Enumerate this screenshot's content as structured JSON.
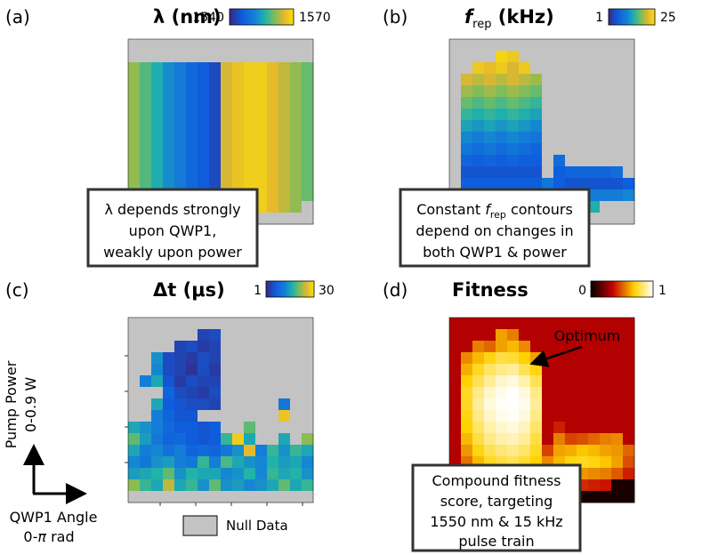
{
  "chart_data": [
    {
      "type": "heatmap",
      "panel_label": "(a)",
      "title": "λ (nm)",
      "colormap": "parula",
      "colorbar": {
        "min_label": "1540",
        "max_label": "1570",
        "vmin": 1540,
        "vmax": 1570
      },
      "x": "QWP1 angle 0 to π rad (16 columns)",
      "y": "pump power 0 to 0.9 W (16 rows, top = high)",
      "grid_rows_top_to_bottom": [
        [
          null,
          null,
          null,
          null,
          null,
          null,
          null,
          null,
          null,
          null,
          null,
          null,
          null,
          null,
          null,
          null
        ],
        [
          null,
          null,
          null,
          null,
          null,
          null,
          null,
          null,
          null,
          null,
          null,
          null,
          null,
          null,
          null,
          null
        ],
        [
          1562,
          1559,
          1556,
          1553,
          1551,
          1548,
          1546,
          1544,
          1565,
          1567,
          1568,
          1568,
          1566,
          1564,
          1562,
          1560
        ],
        [
          1562,
          1559,
          1556,
          1553,
          1551,
          1548,
          1546,
          1544,
          1565,
          1567,
          1568,
          1568,
          1566,
          1564,
          1562,
          1560
        ],
        [
          1562,
          1559,
          1556,
          1553,
          1551,
          1548,
          1546,
          1544,
          1565,
          1567,
          1568,
          1568,
          1566,
          1564,
          1562,
          1560
        ],
        [
          1562,
          1559,
          1556,
          1553,
          1551,
          1548,
          1546,
          1544,
          1565,
          1567,
          1568,
          1568,
          1566,
          1564,
          1562,
          1560
        ],
        [
          1562,
          1559,
          1556,
          1553,
          1551,
          1548,
          1546,
          1544,
          1565,
          1567,
          1568,
          1568,
          1566,
          1564,
          1562,
          1560
        ],
        [
          1562,
          1559,
          1556,
          1553,
          1551,
          1548,
          1546,
          1544,
          1565,
          1567,
          1568,
          1568,
          1566,
          1564,
          1562,
          1560
        ],
        [
          1562,
          1559,
          1556,
          1553,
          1551,
          1548,
          1546,
          1544,
          1565,
          1567,
          1568,
          1568,
          1566,
          1564,
          1562,
          1560
        ],
        [
          1562,
          1559,
          1556,
          1553,
          1551,
          1548,
          1546,
          1544,
          1565,
          1567,
          1568,
          1568,
          1566,
          1564,
          1562,
          1560
        ],
        [
          1562,
          1559,
          1556,
          1553,
          1551,
          1548,
          1546,
          1544,
          1565,
          1567,
          1568,
          1568,
          1566,
          1564,
          1562,
          1560
        ],
        [
          1562,
          1559,
          1556,
          1553,
          1551,
          1548,
          1546,
          1544,
          1565,
          1567,
          1568,
          1568,
          1566,
          1564,
          1562,
          1560
        ],
        [
          1562,
          1559,
          1556,
          1553,
          1551,
          1548,
          1546,
          1544,
          1565,
          1567,
          1568,
          1568,
          1566,
          1564,
          1562,
          1560
        ],
        [
          null,
          1559,
          1556,
          1553,
          1551,
          1548,
          1546,
          1544,
          1565,
          1567,
          1568,
          1568,
          1566,
          1564,
          1562,
          1560
        ],
        [
          1562,
          1559,
          1556,
          1553,
          1551,
          1548,
          1546,
          1544,
          1565,
          1567,
          1568,
          1568,
          1566,
          1564,
          1562,
          null
        ],
        [
          null,
          null,
          null,
          null,
          null,
          null,
          null,
          null,
          null,
          null,
          null,
          null,
          null,
          null,
          null,
          null
        ]
      ],
      "annotation": [
        "λ depends strongly",
        "upon QWP1,",
        "weakly upon power"
      ]
    },
    {
      "type": "heatmap",
      "panel_label": "(b)",
      "title": "f_rep (kHz)",
      "colormap": "parula",
      "colorbar": {
        "min_label": "1",
        "max_label": "25",
        "vmin": 1,
        "vmax": 25
      },
      "x": "QWP1 angle 0 to π rad (16 columns)",
      "y": "pump power 0 to 0.9 W (16 rows, top = high)",
      "grid_rows_top_to_bottom": [
        [
          null,
          null,
          null,
          null,
          null,
          null,
          null,
          null,
          null,
          null,
          null,
          null,
          null,
          null,
          null,
          null
        ],
        [
          null,
          null,
          null,
          null,
          24,
          23,
          null,
          null,
          null,
          null,
          null,
          null,
          null,
          null,
          null,
          null
        ],
        [
          null,
          null,
          23,
          22,
          23,
          21,
          23,
          null,
          null,
          null,
          null,
          null,
          null,
          null,
          null,
          null
        ],
        [
          null,
          21,
          20,
          21,
          20,
          21,
          20,
          19,
          null,
          null,
          null,
          null,
          null,
          null,
          null,
          null
        ],
        [
          null,
          19,
          18,
          19,
          18,
          19,
          18,
          17,
          null,
          null,
          null,
          null,
          null,
          null,
          null,
          null
        ],
        [
          null,
          17,
          16,
          17,
          16,
          17,
          16,
          15,
          null,
          null,
          null,
          null,
          null,
          null,
          null,
          null
        ],
        [
          null,
          15,
          14,
          15,
          14,
          15,
          14,
          13,
          null,
          null,
          null,
          null,
          null,
          null,
          null,
          null
        ],
        [
          null,
          13,
          12,
          13,
          12,
          13,
          12,
          11,
          null,
          null,
          null,
          null,
          null,
          null,
          null,
          null
        ],
        [
          null,
          11,
          10,
          11,
          10,
          11,
          10,
          9,
          null,
          null,
          null,
          null,
          null,
          null,
          null,
          null
        ],
        [
          null,
          9,
          8,
          9,
          8,
          9,
          8,
          7,
          null,
          null,
          null,
          null,
          null,
          null,
          null,
          null
        ],
        [
          null,
          7,
          6,
          7,
          6,
          7,
          6,
          6,
          null,
          8,
          null,
          null,
          null,
          null,
          null,
          null
        ],
        [
          null,
          5,
          5,
          5,
          5,
          5,
          5,
          5,
          null,
          6,
          7,
          7,
          7,
          7,
          8,
          null
        ],
        [
          null,
          6,
          6,
          6,
          6,
          6,
          6,
          6,
          9,
          6,
          5,
          5,
          5,
          5,
          5,
          6
        ],
        [
          null,
          null,
          9,
          9,
          9,
          9,
          9,
          10,
          12,
          null,
          10,
          10,
          10,
          10,
          10,
          11
        ],
        [
          null,
          null,
          null,
          null,
          null,
          null,
          null,
          null,
          null,
          null,
          null,
          14,
          14,
          null,
          null,
          null
        ],
        [
          null,
          null,
          null,
          null,
          null,
          null,
          null,
          null,
          null,
          null,
          null,
          null,
          null,
          null,
          null,
          null
        ]
      ],
      "annotation": [
        "Constant f_rep contours",
        "depend on changes in",
        "both QWP1 & power"
      ]
    },
    {
      "type": "heatmap",
      "panel_label": "(c)",
      "title": "Δt (μs)",
      "colormap": "parula",
      "colorbar": {
        "min_label": "1",
        "max_label": "30",
        "vmin": 1,
        "vmax": 30
      },
      "x": "QWP1 angle 0 to π rad (16 columns)",
      "y": "pump power 0 to 0.9 W (16 rows, top = high)",
      "grid_rows_top_to_bottom": [
        [
          null,
          null,
          null,
          null,
          null,
          null,
          null,
          null,
          null,
          null,
          null,
          null,
          null,
          null,
          null,
          null
        ],
        [
          null,
          null,
          null,
          null,
          null,
          null,
          4,
          5,
          null,
          null,
          null,
          null,
          null,
          null,
          null,
          null
        ],
        [
          null,
          null,
          null,
          null,
          4,
          5,
          3,
          4,
          null,
          null,
          null,
          null,
          null,
          null,
          null,
          null
        ],
        [
          null,
          null,
          14,
          5,
          4,
          3,
          5,
          4,
          null,
          null,
          null,
          null,
          null,
          null,
          null,
          null
        ],
        [
          null,
          null,
          13,
          5,
          4,
          2,
          5,
          3,
          null,
          null,
          null,
          null,
          null,
          null,
          null,
          null
        ],
        [
          null,
          12,
          16,
          6,
          3,
          5,
          4,
          4,
          null,
          null,
          null,
          null,
          null,
          null,
          null,
          null
        ],
        [
          null,
          null,
          null,
          8,
          5,
          4,
          3,
          5,
          null,
          null,
          null,
          null,
          null,
          null,
          null,
          null
        ],
        [
          null,
          null,
          16,
          7,
          6,
          5,
          5,
          4,
          null,
          null,
          null,
          null,
          null,
          11,
          null,
          null
        ],
        [
          null,
          null,
          12,
          8,
          6,
          6,
          null,
          null,
          null,
          null,
          null,
          null,
          null,
          27,
          null,
          null
        ],
        [
          16,
          14,
          12,
          9,
          7,
          7,
          6,
          7,
          null,
          null,
          20,
          null,
          null,
          null,
          null,
          null
        ],
        [
          20,
          15,
          11,
          8,
          9,
          7,
          6,
          7,
          18,
          28,
          16,
          null,
          null,
          16,
          null,
          22
        ],
        [
          16,
          12,
          13,
          10,
          12,
          8,
          9,
          8,
          11,
          14,
          26,
          12,
          18,
          14,
          18,
          16
        ],
        [
          13,
          11,
          14,
          15,
          12,
          11,
          18,
          12,
          19,
          16,
          14,
          13,
          17,
          15,
          16,
          13
        ],
        [
          15,
          16,
          17,
          20,
          14,
          17,
          16,
          16,
          13,
          14,
          17,
          13,
          18,
          16,
          17,
          14
        ],
        [
          22,
          18,
          16,
          24,
          16,
          18,
          14,
          20,
          14,
          15,
          13,
          14,
          16,
          20,
          16,
          18
        ],
        [
          null,
          null,
          null,
          null,
          null,
          null,
          null,
          null,
          null,
          null,
          null,
          null,
          null,
          null,
          null,
          null
        ]
      ]
    },
    {
      "type": "heatmap",
      "panel_label": "(d)",
      "title": "Fitness",
      "colormap": "hot",
      "colorbar": {
        "min_label": "0",
        "max_label": "1",
        "vmin": 0,
        "vmax": 1
      },
      "x": "QWP1 angle 0 to π rad (16 columns)",
      "y": "pump power 0 to 0.9 W (16 rows, top = high)",
      "grid_rows_top_to_bottom": [
        [
          0.32,
          0.32,
          0.32,
          0.32,
          0.32,
          0.32,
          0.32,
          0.32,
          0.32,
          0.32,
          0.32,
          0.32,
          0.32,
          0.32,
          0.32,
          0.32
        ],
        [
          0.32,
          0.32,
          0.32,
          0.32,
          0.62,
          0.56,
          0.32,
          0.32,
          0.32,
          0.32,
          0.32,
          0.32,
          0.32,
          0.32,
          0.32,
          0.32
        ],
        [
          0.32,
          0.32,
          0.56,
          0.52,
          0.62,
          0.66,
          0.58,
          0.32,
          0.32,
          0.32,
          0.32,
          0.32,
          0.32,
          0.32,
          0.32,
          0.32
        ],
        [
          0.32,
          0.58,
          0.66,
          0.72,
          0.78,
          0.76,
          0.7,
          0.62,
          0.32,
          0.32,
          0.32,
          0.32,
          0.32,
          0.32,
          0.32,
          0.32
        ],
        [
          0.32,
          0.64,
          0.74,
          0.82,
          0.86,
          0.88,
          0.8,
          0.72,
          0.32,
          0.32,
          0.32,
          0.32,
          0.32,
          0.32,
          0.32,
          0.32
        ],
        [
          0.32,
          0.7,
          0.8,
          0.88,
          0.94,
          0.96,
          0.9,
          0.8,
          0.32,
          0.32,
          0.32,
          0.32,
          0.32,
          0.32,
          0.32,
          0.32
        ],
        [
          0.32,
          0.74,
          0.86,
          0.94,
          0.98,
          1.0,
          0.96,
          0.86,
          0.32,
          0.32,
          0.32,
          0.32,
          0.32,
          0.32,
          0.32,
          0.32
        ],
        [
          0.32,
          0.74,
          0.88,
          0.96,
          0.99,
          1.0,
          0.98,
          0.88,
          0.32,
          0.32,
          0.32,
          0.32,
          0.32,
          0.32,
          0.32,
          0.32
        ],
        [
          0.32,
          0.72,
          0.86,
          0.94,
          0.98,
          0.99,
          0.96,
          0.86,
          0.32,
          0.32,
          0.32,
          0.32,
          0.32,
          0.32,
          0.32,
          0.32
        ],
        [
          0.32,
          0.7,
          0.82,
          0.9,
          0.94,
          0.96,
          0.92,
          0.82,
          0.32,
          0.4,
          0.32,
          0.32,
          0.32,
          0.32,
          0.32,
          0.32
        ],
        [
          0.32,
          0.66,
          0.78,
          0.86,
          0.9,
          0.92,
          0.88,
          0.78,
          0.32,
          0.56,
          0.46,
          0.48,
          0.52,
          0.56,
          0.58,
          0.32
        ],
        [
          0.32,
          0.6,
          0.72,
          0.8,
          0.84,
          0.86,
          0.82,
          0.74,
          0.46,
          0.62,
          0.64,
          0.68,
          0.66,
          0.62,
          0.6,
          0.52
        ],
        [
          0.32,
          0.54,
          0.66,
          0.74,
          0.78,
          0.8,
          0.76,
          0.7,
          0.58,
          0.66,
          0.72,
          0.74,
          0.72,
          0.68,
          0.62,
          0.48
        ],
        [
          0.32,
          0.46,
          0.58,
          0.66,
          0.7,
          0.72,
          0.68,
          0.62,
          0.52,
          0.54,
          0.58,
          0.6,
          0.58,
          0.56,
          0.5,
          0.4
        ],
        [
          0.32,
          0.4,
          0.46,
          0.5,
          0.52,
          0.54,
          0.5,
          0.46,
          0.4,
          0.38,
          0.4,
          0.42,
          0.4,
          0.38,
          0.05,
          0.05
        ],
        [
          0.04,
          0.04,
          0.04,
          0.04,
          0.04,
          0.04,
          0.04,
          0.04,
          0.04,
          0.04,
          0.04,
          0.04,
          0.04,
          0.04,
          0.04,
          0.04
        ]
      ],
      "marker_label": "Optimum",
      "annotation": [
        "Compound fitness",
        "score, targeting",
        "1550 nm & 15 kHz",
        "pulse train"
      ]
    }
  ],
  "axis_key": {
    "y_label_line1": "Pump Power",
    "y_label_line2": "0-0.9 W",
    "x_label_line1": "QWP1 Angle",
    "x_label_line2": "0-π rad"
  },
  "legend": {
    "null_label": "Null Data",
    "null_color": "#c3c3c3"
  },
  "colors": {
    "null": "#c3c3c3",
    "box_border": "#333333"
  }
}
